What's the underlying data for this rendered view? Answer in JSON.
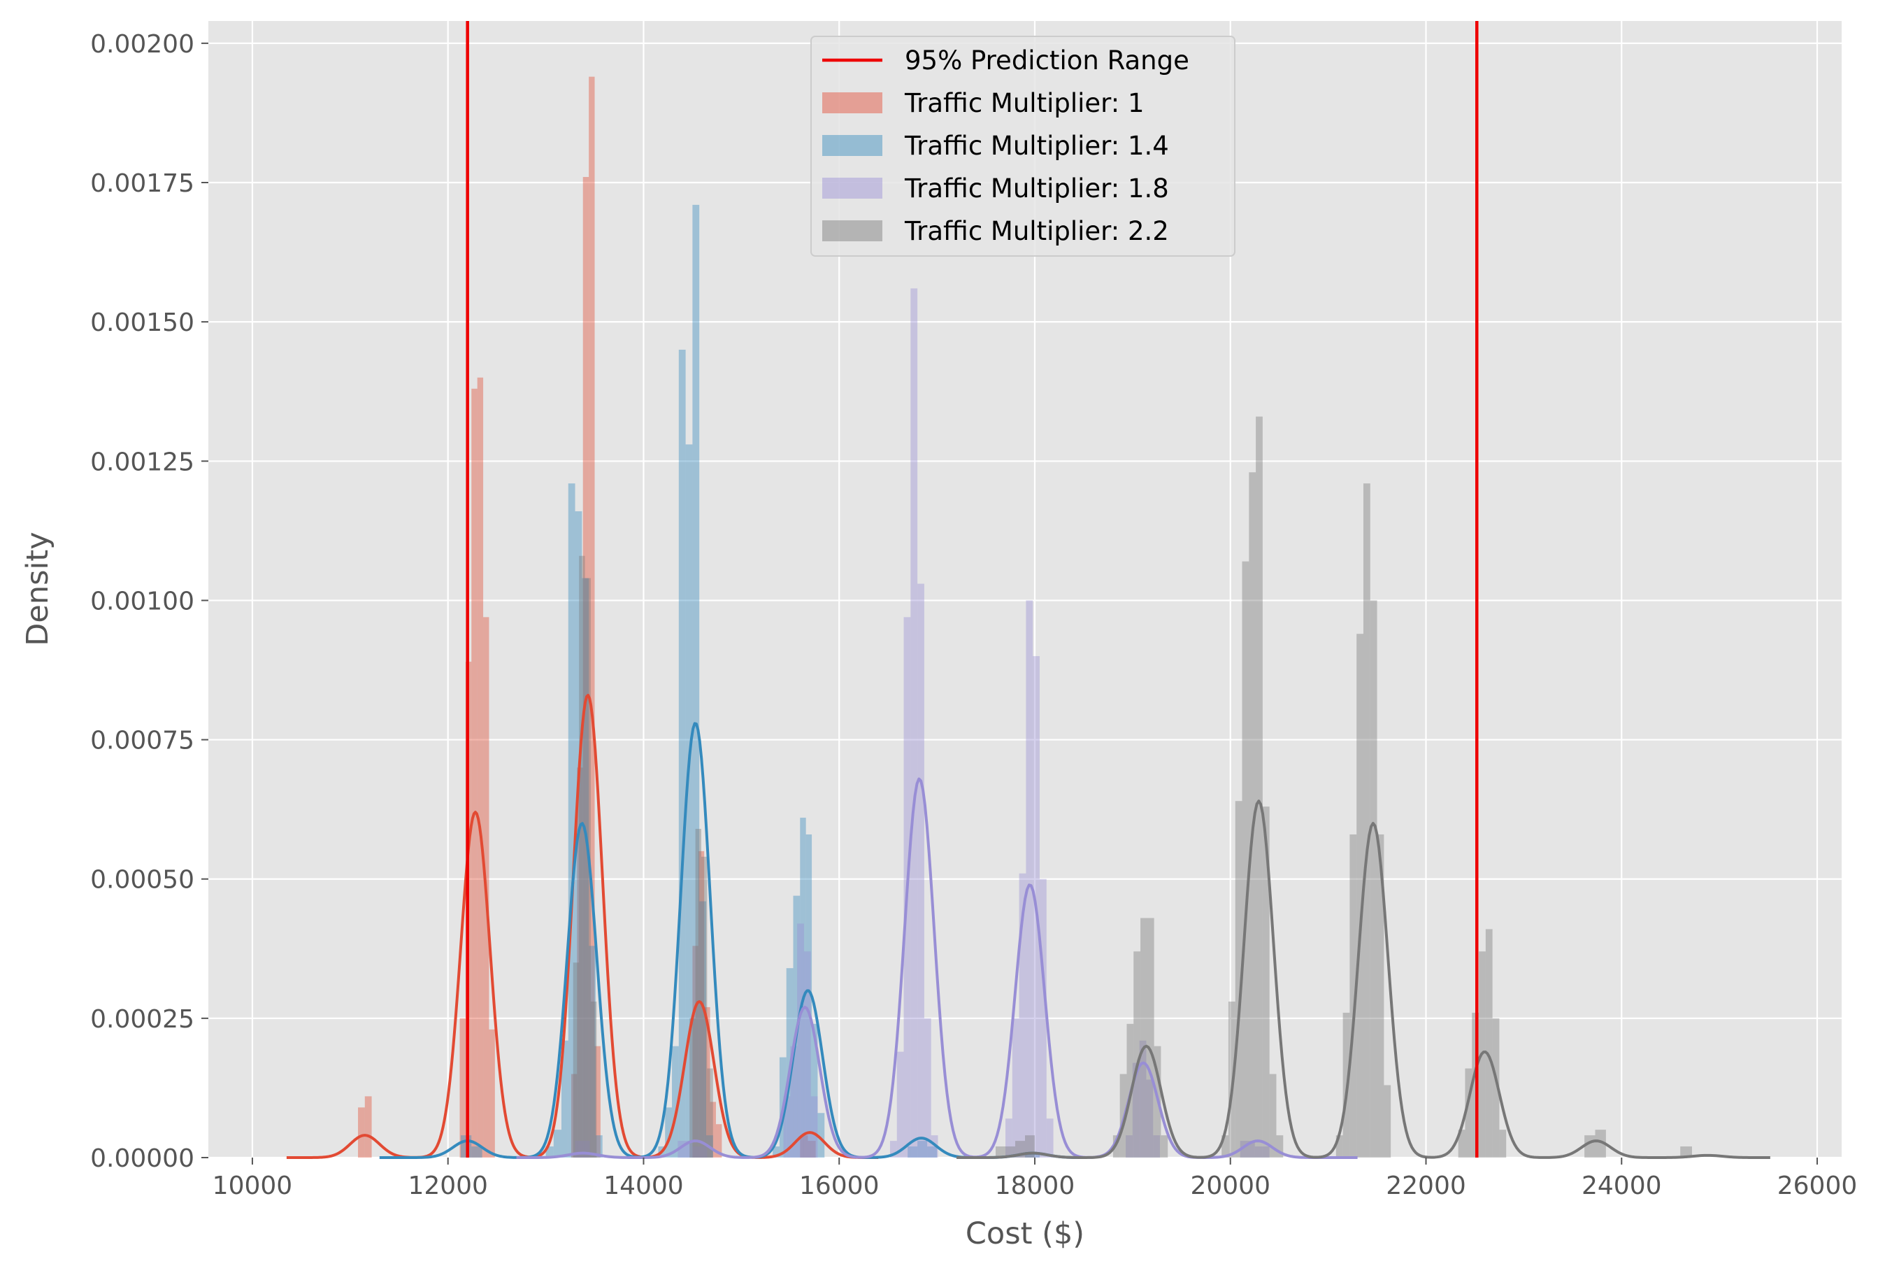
{
  "chart_data": {
    "type": "histogram",
    "title": "",
    "xlabel": "Cost ($)",
    "ylabel": "Density",
    "xlim": [
      9550,
      26250
    ],
    "ylim": [
      0,
      0.00204
    ],
    "xticks": [
      10000,
      12000,
      14000,
      16000,
      18000,
      20000,
      22000,
      24000,
      26000
    ],
    "xtick_labels": [
      "10000",
      "12000",
      "14000",
      "16000",
      "18000",
      "20000",
      "22000",
      "24000",
      "26000"
    ],
    "yticks": [
      0,
      0.00025,
      0.0005,
      0.00075,
      0.001,
      0.00125,
      0.0015,
      0.00175,
      0.002
    ],
    "ytick_labels": [
      "0.00000",
      "0.00025",
      "0.00050",
      "0.00075",
      "0.00100",
      "0.00125",
      "0.00150",
      "0.00175",
      "0.00200"
    ],
    "grid": true,
    "style": "ggplot",
    "legend_position": "top-center",
    "prediction_range": {
      "name": "95% Prediction Range",
      "color": "#ee0000",
      "values": [
        12200,
        22520
      ]
    },
    "series": [
      {
        "name": "Traffic Multiplier: 1",
        "color": "#E24A33",
        "bars": [
          [
            11080,
            11150,
            9e-05
          ],
          [
            11150,
            11220,
            0.00011
          ],
          [
            12120,
            12180,
            0.00025
          ],
          [
            12180,
            12240,
            0.00089
          ],
          [
            12240,
            12300,
            0.00138
          ],
          [
            12300,
            12360,
            0.0014
          ],
          [
            12360,
            12420,
            0.00097
          ],
          [
            12420,
            12480,
            0.00023
          ],
          [
            13260,
            13320,
            0.00015
          ],
          [
            13320,
            13380,
            0.0007
          ],
          [
            13380,
            13440,
            0.00176
          ],
          [
            13440,
            13500,
            0.00194
          ],
          [
            13500,
            13560,
            0.0002
          ],
          [
            14500,
            14560,
            0.00038
          ],
          [
            14560,
            14620,
            0.00055
          ],
          [
            14620,
            14680,
            0.00027
          ],
          [
            14680,
            14740,
            0.0001
          ],
          [
            14740,
            14800,
            6e-05
          ],
          [
            15600,
            15680,
            4e-05
          ],
          [
            15680,
            15760,
            3e-05
          ]
        ],
        "kde_peaks": [
          [
            11150,
            4e-05,
            150
          ],
          [
            12280,
            0.00062,
            150
          ],
          [
            13430,
            0.00083,
            150
          ],
          [
            14570,
            0.00028,
            150
          ],
          [
            15700,
            4.5e-05,
            150
          ]
        ],
        "kde_range": [
          10350,
          16400
        ]
      },
      {
        "name": "Traffic Multiplier: 1.4",
        "color": "#348ABD",
        "bars": [
          [
            12130,
            12240,
            4e-05
          ],
          [
            12240,
            12350,
            2e-05
          ],
          [
            13000,
            13080,
            2e-05
          ],
          [
            13080,
            13160,
            5e-05
          ],
          [
            13160,
            13230,
            0.00021
          ],
          [
            13230,
            13300,
            0.00121
          ],
          [
            13300,
            13370,
            0.00116
          ],
          [
            13370,
            13440,
            0.00104
          ],
          [
            13440,
            13510,
            0.00038
          ],
          [
            13510,
            13580,
            4e-05
          ],
          [
            14150,
            14220,
            2e-05
          ],
          [
            14220,
            14290,
            9e-05
          ],
          [
            14290,
            14360,
            0.0002
          ],
          [
            14360,
            14430,
            0.00145
          ],
          [
            14430,
            14500,
            0.00128
          ],
          [
            14500,
            14570,
            0.00171
          ],
          [
            14570,
            14640,
            0.00046
          ],
          [
            14640,
            14710,
            4e-05
          ],
          [
            15320,
            15390,
            2e-05
          ],
          [
            15390,
            15460,
            0.00018
          ],
          [
            15460,
            15530,
            0.00034
          ],
          [
            15530,
            15600,
            0.00047
          ],
          [
            15600,
            15660,
            0.00061
          ],
          [
            15660,
            15720,
            0.00058
          ],
          [
            15720,
            15780,
            0.00024
          ],
          [
            15780,
            15850,
            8e-05
          ],
          [
            16700,
            16800,
            2e-05
          ],
          [
            16800,
            16900,
            3e-05
          ],
          [
            16900,
            17000,
            2e-05
          ],
          [
            17900,
            18050,
            1e-05
          ]
        ],
        "kde_peaks": [
          [
            12200,
            3e-05,
            150
          ],
          [
            13370,
            0.0006,
            150
          ],
          [
            14530,
            0.00078,
            150
          ],
          [
            15680,
            0.0003,
            150
          ],
          [
            16840,
            3.5e-05,
            150
          ],
          [
            17980,
            8e-06,
            150
          ]
        ],
        "kde_range": [
          11300,
          18500
        ]
      },
      {
        "name": "Traffic Multiplier: 1.8",
        "color": "#988ED5",
        "bars": [
          [
            13300,
            13450,
            3e-05
          ],
          [
            14350,
            14500,
            3e-05
          ],
          [
            14500,
            14650,
            2e-05
          ],
          [
            15430,
            15500,
            0.00011
          ],
          [
            15500,
            15570,
            0.0002
          ],
          [
            15570,
            15640,
            0.00042
          ],
          [
            15640,
            15710,
            0.00037
          ],
          [
            15710,
            15780,
            0.00011
          ],
          [
            16520,
            16590,
            3e-05
          ],
          [
            16590,
            16660,
            0.00019
          ],
          [
            16660,
            16730,
            0.00097
          ],
          [
            16730,
            16800,
            0.00156
          ],
          [
            16800,
            16870,
            0.00103
          ],
          [
            16870,
            16940,
            0.00025
          ],
          [
            16940,
            17010,
            4e-05
          ],
          [
            17700,
            17770,
            7e-05
          ],
          [
            17770,
            17840,
            0.00025
          ],
          [
            17840,
            17910,
            0.00051
          ],
          [
            17910,
            17980,
            0.001
          ],
          [
            17980,
            18050,
            0.0009
          ],
          [
            18050,
            18120,
            0.0005
          ],
          [
            18120,
            18190,
            7e-05
          ],
          [
            18930,
            19000,
            4e-05
          ],
          [
            19000,
            19070,
            0.00017
          ],
          [
            19070,
            19140,
            0.00021
          ],
          [
            19140,
            19210,
            0.00014
          ],
          [
            19210,
            19280,
            4e-05
          ],
          [
            20100,
            20250,
            3e-05
          ],
          [
            20250,
            20400,
            2e-05
          ]
        ],
        "kde_peaks": [
          [
            13380,
            8e-06,
            150
          ],
          [
            14530,
            3e-05,
            150
          ],
          [
            15650,
            0.00027,
            150
          ],
          [
            16820,
            0.00068,
            150
          ],
          [
            17950,
            0.00049,
            150
          ],
          [
            19110,
            0.00017,
            150
          ],
          [
            20280,
            3e-05,
            150
          ]
        ],
        "kde_range": [
          12700,
          21300
        ]
      },
      {
        "name": "Traffic Multiplier: 2.2",
        "color": "#777777",
        "bars": [
          [
            13280,
            13340,
            0.00035
          ],
          [
            13340,
            13400,
            0.00108
          ],
          [
            13400,
            13460,
            0.00104
          ],
          [
            13460,
            13520,
            0.00028
          ],
          [
            14470,
            14530,
            0.00025
          ],
          [
            14530,
            14590,
            0.00059
          ],
          [
            14590,
            14650,
            0.00054
          ],
          [
            14650,
            14710,
            0.00016
          ],
          [
            17600,
            17700,
            2e-05
          ],
          [
            17700,
            17800,
            2e-05
          ],
          [
            17800,
            17900,
            3e-05
          ],
          [
            17900,
            18000,
            4e-05
          ],
          [
            18800,
            18870,
            4e-05
          ],
          [
            18870,
            18940,
            0.00015
          ],
          [
            18940,
            19010,
            0.00024
          ],
          [
            19010,
            19080,
            0.00037
          ],
          [
            19080,
            19150,
            0.00043
          ],
          [
            19150,
            19220,
            0.00043
          ],
          [
            19220,
            19290,
            0.0002
          ],
          [
            19290,
            19360,
            4e-05
          ],
          [
            19910,
            19980,
            4e-05
          ],
          [
            19980,
            20050,
            0.00028
          ],
          [
            20050,
            20120,
            0.00064
          ],
          [
            20120,
            20190,
            0.00107
          ],
          [
            20190,
            20260,
            0.00123
          ],
          [
            20260,
            20330,
            0.00133
          ],
          [
            20330,
            20400,
            0.00063
          ],
          [
            20400,
            20470,
            0.00015
          ],
          [
            20470,
            20540,
            4e-05
          ],
          [
            21080,
            21150,
            4e-05
          ],
          [
            21150,
            21220,
            0.00026
          ],
          [
            21220,
            21290,
            0.00058
          ],
          [
            21290,
            21360,
            0.00094
          ],
          [
            21360,
            21430,
            0.00121
          ],
          [
            21430,
            21500,
            0.001
          ],
          [
            21500,
            21570,
            0.00058
          ],
          [
            21570,
            21640,
            0.00013
          ],
          [
            22330,
            22400,
            5e-05
          ],
          [
            22400,
            22470,
            0.00016
          ],
          [
            22470,
            22540,
            0.00026
          ],
          [
            22540,
            22610,
            0.00037
          ],
          [
            22610,
            22680,
            0.00041
          ],
          [
            22680,
            22750,
            0.00025
          ],
          [
            22750,
            22820,
            5e-05
          ],
          [
            23620,
            23730,
            4e-05
          ],
          [
            23730,
            23840,
            5e-05
          ],
          [
            24600,
            24720,
            2e-05
          ]
        ],
        "kde_peaks": [
          [
            17980,
            8e-06,
            150
          ],
          [
            19140,
            0.0002,
            150
          ],
          [
            20290,
            0.00064,
            150
          ],
          [
            21460,
            0.0006,
            150
          ],
          [
            22600,
            0.00019,
            150
          ],
          [
            23740,
            3e-05,
            150
          ],
          [
            24880,
            4e-06,
            150
          ]
        ],
        "kde_range": [
          17200,
          25520
        ]
      }
    ]
  },
  "colors": {
    "plot_background": "#E5E5E5",
    "grid": "#ffffff",
    "page_background": "#ffffff"
  }
}
